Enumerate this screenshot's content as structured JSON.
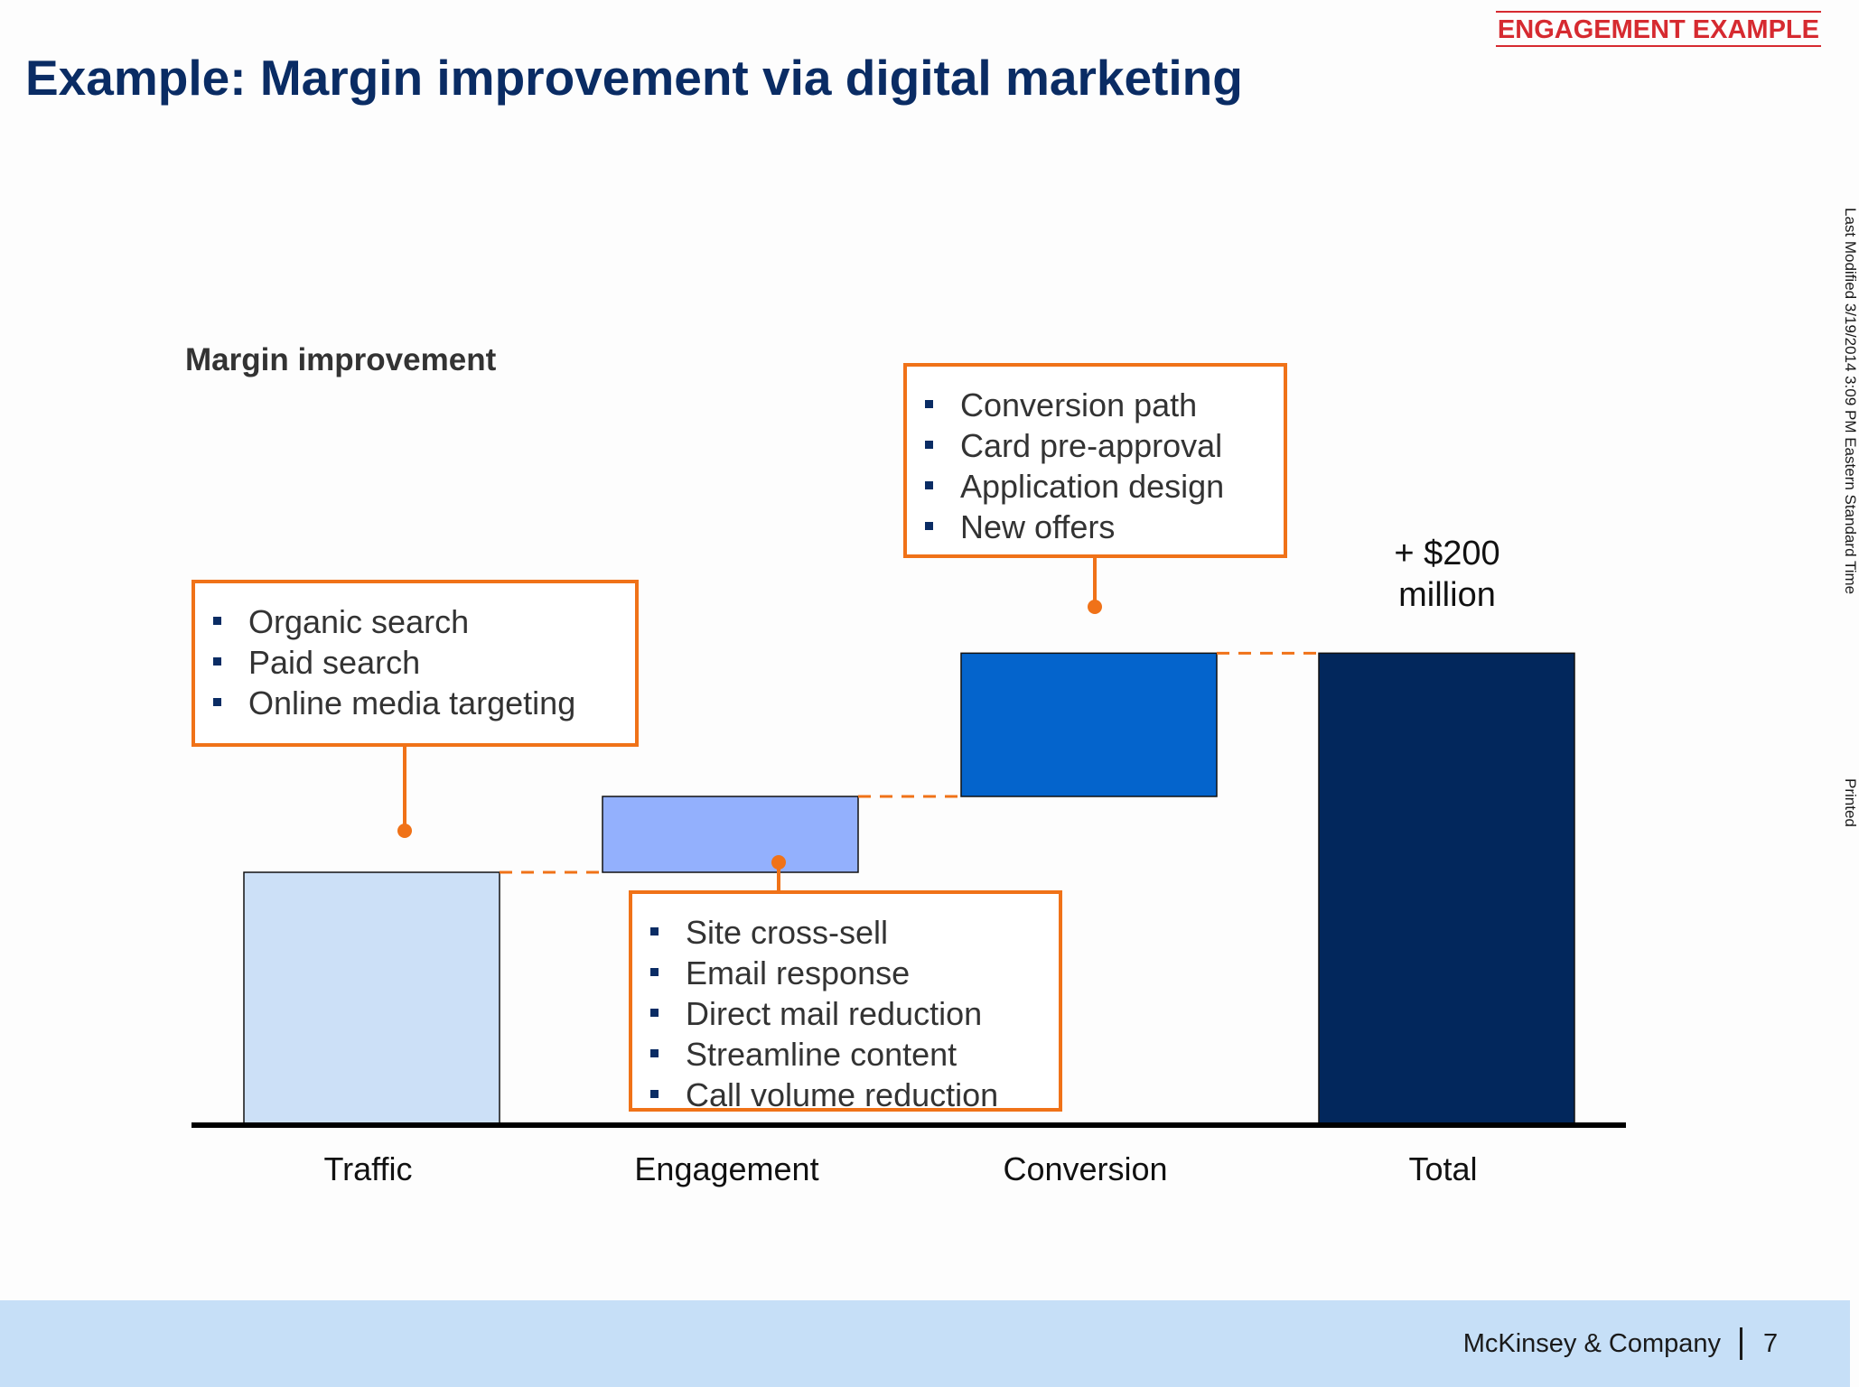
{
  "tag": "ENGAGEMENT EXAMPLE",
  "title": "Example: Margin improvement via digital marketing",
  "side_modified": "Last Modified 3/19/2014 3:09 PM Eastern Standard Time",
  "side_printed": "Printed",
  "footer": {
    "brand": "McKinsey & Company",
    "page": "7"
  },
  "colors": {
    "title": "#0a2c64",
    "tag": "#d62a30",
    "callout_border": "#f07218",
    "traffic": "#cce0f7",
    "engagement": "#93b0fd",
    "conversion": "#0464cc",
    "total": "#02275c",
    "footer": "#c6dff7"
  },
  "chart_data": {
    "type": "bar",
    "subtype": "waterfall",
    "title": "Margin improvement",
    "categories": [
      "Traffic",
      "Engagement",
      "Conversion",
      "Total"
    ],
    "values": [
      60,
      18,
      34,
      112
    ],
    "ylim": [
      0,
      120
    ],
    "unit_note": "values estimated relative; total labelled",
    "total_label": [
      "+ $200",
      "million"
    ],
    "grid": false,
    "legend": "none",
    "callouts": [
      {
        "category": "Traffic",
        "items": [
          "Organic search",
          "Paid search",
          "Online media targeting"
        ]
      },
      {
        "category": "Engagement",
        "items": [
          "Site cross-sell",
          "Email response",
          "Direct mail reduction",
          "Streamline content",
          "Call volume reduction"
        ]
      },
      {
        "category": "Conversion",
        "items": [
          "Conversion path",
          "Card pre-approval",
          "Application design",
          "New offers"
        ]
      }
    ]
  }
}
